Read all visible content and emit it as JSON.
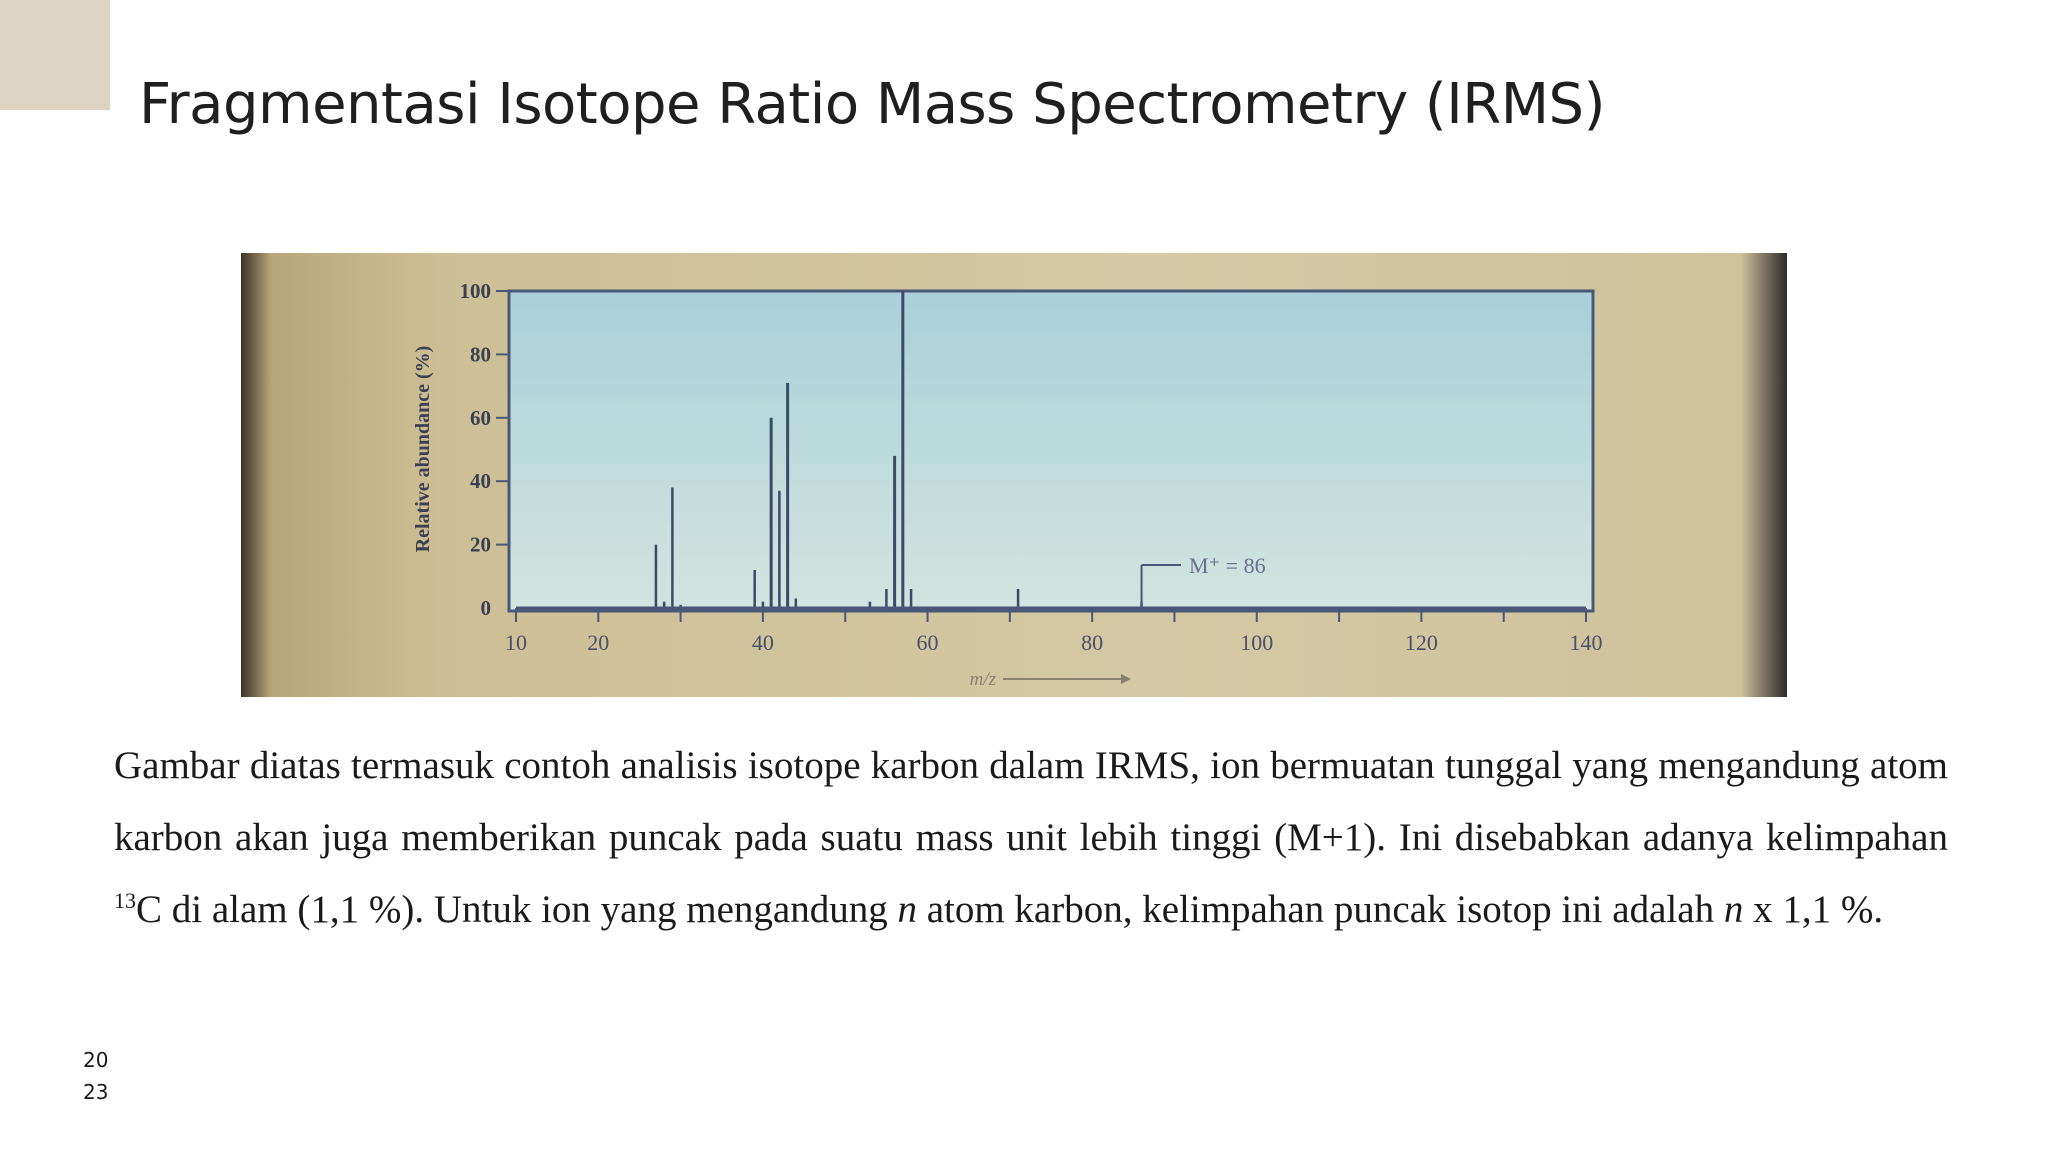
{
  "slide": {
    "title": "Fragmentasi Isotope Ratio Mass Spectrometry (IRMS)",
    "paragraph": {
      "part1": "Gambar diatas termasuk contoh analisis isotope karbon dalam IRMS, ion bermuatan tunggal yang mengandung atom karbon akan juga memberikan puncak pada suatu mass unit lebih tinggi (M+1). Ini disebabkan adanya kelimpahan ",
      "superscript": "13",
      "part2": "C di alam (1,1 %). Untuk ion yang mengandung ",
      "var1": "n",
      "part3": " atom karbon, kelimpahan puncak isotop ini adalah ",
      "var2": "n",
      "part4": " x 1,1 %."
    },
    "page_number": "20\n23"
  },
  "colors": {
    "accent_block": "#ddd3c2",
    "plot_bg_top": "#a9d0d8",
    "plot_bg_bottom": "#d2e5df",
    "peak_color": "#3c4a6a"
  },
  "chart_data": {
    "type": "bar",
    "ylabel": "Relative abundance (%)",
    "xlabel": "m/z",
    "xlim": [
      10,
      140
    ],
    "ylim": [
      0,
      100
    ],
    "x_ticks": [
      10,
      20,
      40,
      60,
      80,
      100,
      120,
      140
    ],
    "y_ticks": [
      0,
      20,
      40,
      60,
      80,
      100
    ],
    "peaks": [
      {
        "mz": 27,
        "abundance": 20
      },
      {
        "mz": 28,
        "abundance": 2
      },
      {
        "mz": 29,
        "abundance": 38
      },
      {
        "mz": 30,
        "abundance": 1
      },
      {
        "mz": 39,
        "abundance": 12
      },
      {
        "mz": 40,
        "abundance": 2
      },
      {
        "mz": 41,
        "abundance": 60
      },
      {
        "mz": 42,
        "abundance": 37
      },
      {
        "mz": 43,
        "abundance": 71
      },
      {
        "mz": 44,
        "abundance": 3
      },
      {
        "mz": 53,
        "abundance": 2
      },
      {
        "mz": 55,
        "abundance": 6
      },
      {
        "mz": 56,
        "abundance": 48
      },
      {
        "mz": 57,
        "abundance": 100
      },
      {
        "mz": 58,
        "abundance": 6
      },
      {
        "mz": 71,
        "abundance": 6
      },
      {
        "mz": 86,
        "abundance": 2
      }
    ],
    "annotation": {
      "text": "M⁺ = 86",
      "mz": 86
    }
  }
}
